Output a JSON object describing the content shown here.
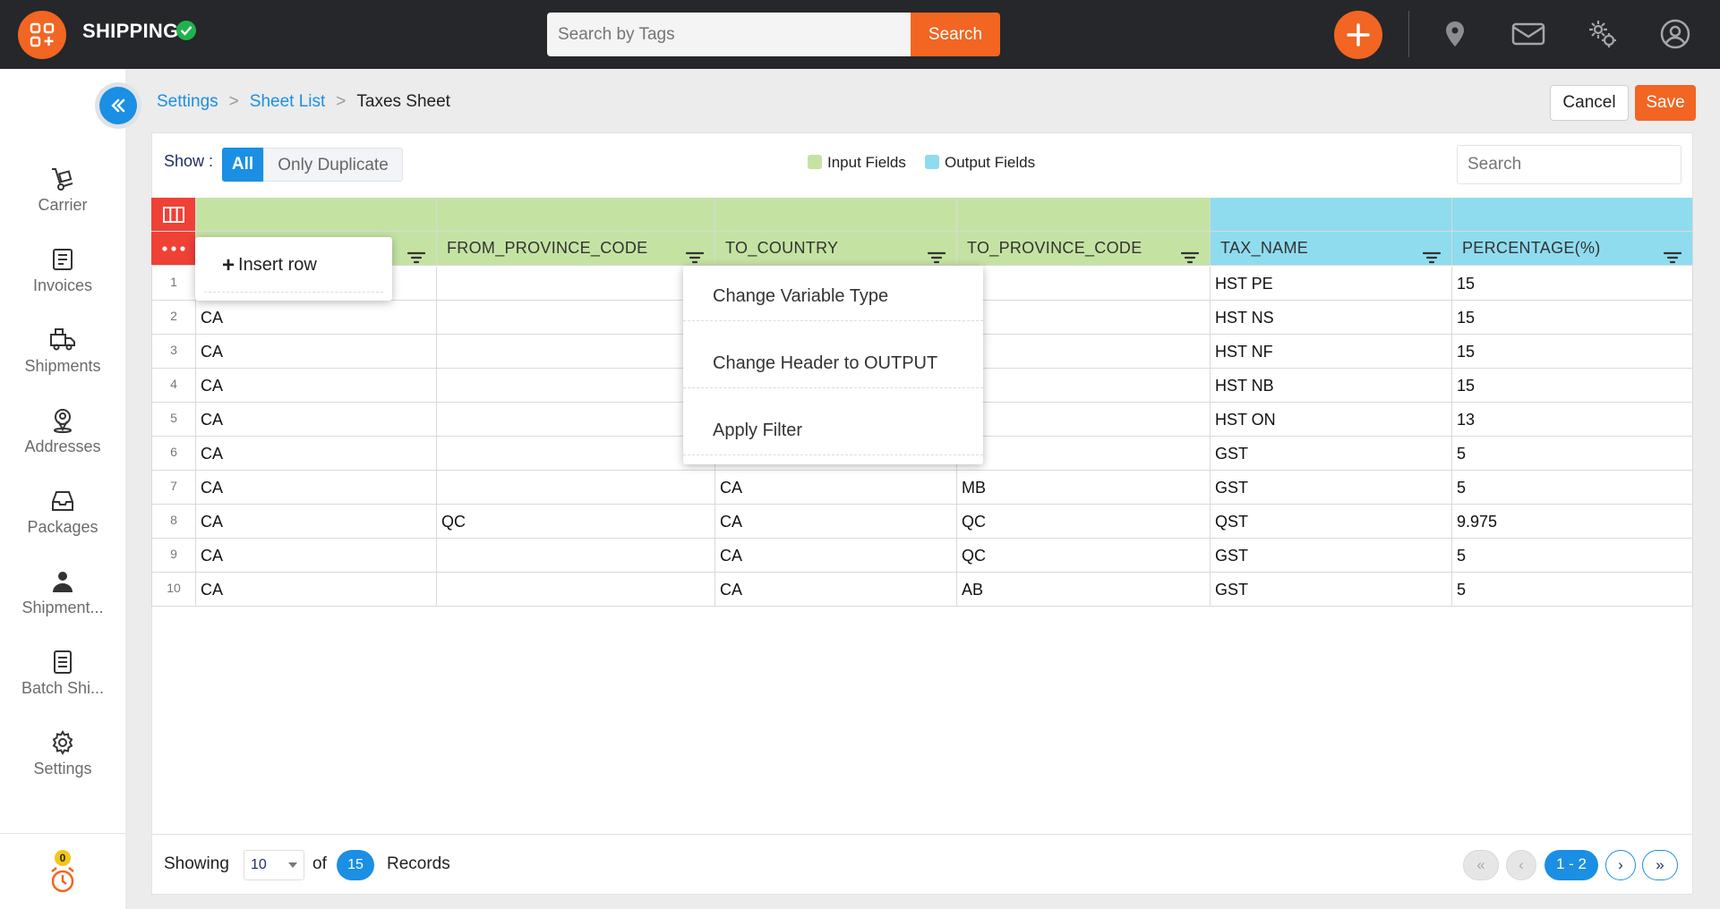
{
  "app": {
    "title": "SHIPPING"
  },
  "topbar": {
    "search_placeholder": "Search by Tags",
    "search_button": "Search"
  },
  "sidebar": {
    "items": [
      {
        "label": "Carrier",
        "icon": "hand-truck-icon"
      },
      {
        "label": "Invoices",
        "icon": "invoice-icon"
      },
      {
        "label": "Shipments",
        "icon": "truck-icon"
      },
      {
        "label": "Addresses",
        "icon": "location-pin-icon"
      },
      {
        "label": "Packages",
        "icon": "inbox-icon"
      },
      {
        "label": "Shipment...",
        "icon": "person-icon"
      },
      {
        "label": "Batch Shi...",
        "icon": "document-list-icon"
      },
      {
        "label": "Settings",
        "icon": "gear-icon"
      }
    ],
    "alarm_count": "0"
  },
  "breadcrumb": {
    "items": [
      "Settings",
      "Sheet List"
    ],
    "current": "Taxes Sheet"
  },
  "actions": {
    "cancel": "Cancel",
    "save": "Save"
  },
  "filter": {
    "show_label": "Show :",
    "options": [
      "All",
      "Only Duplicate"
    ],
    "selected": "All"
  },
  "legend": {
    "input": "Input Fields",
    "output": "Output Fields",
    "input_color": "#c4e3a3",
    "output_color": "#8fdcee"
  },
  "table_search_placeholder": "Search",
  "table": {
    "columns": [
      "",
      "FROM_PROVINCE_CODE",
      "TO_COUNTRY",
      "TO_PROVINCE_CODE",
      "TAX_NAME",
      "PERCENTAGE(%)"
    ],
    "column_types": [
      "input",
      "input",
      "input",
      "input",
      "output",
      "output"
    ],
    "rows": [
      {
        "num": "1",
        "cells": [
          "",
          "",
          "",
          "",
          "HST PE",
          "15"
        ]
      },
      {
        "num": "2",
        "cells": [
          "CA",
          "",
          "",
          "",
          "HST NS",
          "15"
        ]
      },
      {
        "num": "3",
        "cells": [
          "CA",
          "",
          "",
          "",
          "HST NF",
          "15"
        ]
      },
      {
        "num": "4",
        "cells": [
          "CA",
          "",
          "",
          "",
          "HST NB",
          "15"
        ]
      },
      {
        "num": "5",
        "cells": [
          "CA",
          "",
          "",
          "",
          "HST ON",
          "13"
        ]
      },
      {
        "num": "6",
        "cells": [
          "CA",
          "",
          "",
          "",
          "GST",
          "5"
        ]
      },
      {
        "num": "7",
        "cells": [
          "CA",
          "",
          "CA",
          "MB",
          "GST",
          "5"
        ]
      },
      {
        "num": "8",
        "cells": [
          "CA",
          "QC",
          "CA",
          "QC",
          "QST",
          "9.975"
        ]
      },
      {
        "num": "9",
        "cells": [
          "CA",
          "",
          "CA",
          "QC",
          "GST",
          "5"
        ]
      },
      {
        "num": "10",
        "cells": [
          "CA",
          "",
          "CA",
          "AB",
          "GST",
          "5"
        ]
      }
    ]
  },
  "row_menu": {
    "insert_row": "Insert row"
  },
  "column_menu": {
    "items": [
      "Change Variable Type",
      "Change Header to OUTPUT",
      "Apply Filter"
    ]
  },
  "footer": {
    "showing_label": "Showing",
    "page_size": "10",
    "of_label": "of",
    "total": "15",
    "records_label": "Records",
    "page_range": "1 - 2"
  }
}
